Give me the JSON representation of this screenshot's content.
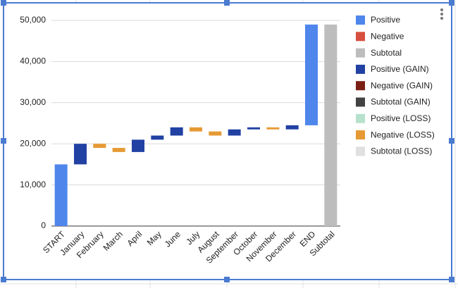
{
  "chart_data": {
    "type": "waterfall",
    "categories": [
      "START",
      "January",
      "February",
      "March",
      "April",
      "May",
      "June",
      "July",
      "August",
      "September",
      "October",
      "November",
      "December",
      "END",
      "Subtotal"
    ],
    "series": [
      {
        "name": "Positive",
        "color": "#4f86ec",
        "values": [
          15000,
          null,
          null,
          null,
          null,
          null,
          null,
          null,
          null,
          null,
          null,
          null,
          null,
          24500,
          null
        ]
      },
      {
        "name": "Negative",
        "color": "#d64f3f",
        "values": [
          null,
          null,
          null,
          null,
          null,
          null,
          null,
          null,
          null,
          null,
          null,
          null,
          null,
          null,
          null
        ]
      },
      {
        "name": "Subtotal",
        "color": "#bdbdbd",
        "subtotal": true,
        "values": [
          null,
          null,
          null,
          null,
          null,
          null,
          null,
          null,
          null,
          null,
          null,
          null,
          null,
          null,
          49000
        ]
      },
      {
        "name": "Positive (GAIN)",
        "color": "#2141a3",
        "values": [
          null,
          5000,
          null,
          null,
          3000,
          1000,
          2000,
          null,
          null,
          1500,
          500,
          null,
          1000,
          null,
          null
        ]
      },
      {
        "name": "Negative (GAIN)",
        "color": "#7b1f14",
        "values": [
          null,
          null,
          null,
          null,
          null,
          null,
          null,
          null,
          null,
          null,
          null,
          null,
          null,
          null,
          null
        ]
      },
      {
        "name": "Subtotal (GAIN)",
        "color": "#424242",
        "subtotal": true,
        "values": [
          null,
          null,
          null,
          null,
          null,
          null,
          null,
          null,
          null,
          null,
          null,
          null,
          null,
          null,
          null
        ]
      },
      {
        "name": "Positive (LOSS)",
        "color": "#b7e1cd",
        "values": [
          null,
          null,
          null,
          null,
          null,
          null,
          null,
          null,
          null,
          null,
          null,
          null,
          null,
          null,
          null
        ]
      },
      {
        "name": "Negative (LOSS)",
        "color": "#e69a34",
        "values": [
          null,
          null,
          -1000,
          -1000,
          null,
          null,
          null,
          -1000,
          -1000,
          null,
          null,
          -500,
          null,
          null,
          null
        ]
      },
      {
        "name": "Subtotal (LOSS)",
        "color": "#e0e0e0",
        "subtotal": true,
        "values": [
          null,
          null,
          null,
          null,
          null,
          null,
          null,
          null,
          null,
          null,
          null,
          null,
          null,
          null,
          null
        ]
      }
    ],
    "ylim": [
      0,
      50000
    ],
    "yticks": [
      0,
      {
        "value": 10000,
        "label": "10,000"
      },
      {
        "value": 20000,
        "label": "20,000"
      },
      {
        "value": 30000,
        "label": "30,000"
      },
      {
        "value": 40000,
        "label": "40,000"
      },
      {
        "value": 50000,
        "label": "50,000"
      }
    ],
    "grid": true,
    "legend": "right"
  }
}
